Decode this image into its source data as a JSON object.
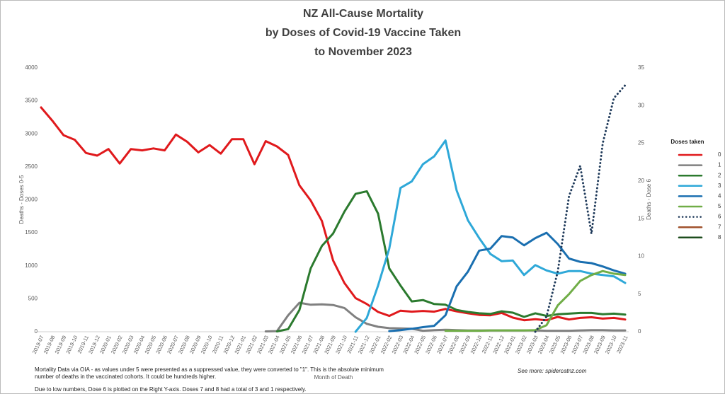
{
  "chart_data": {
    "type": "line",
    "title": [
      "NZ All-Cause Mortality",
      "by Doses of Covid-19 Vaccine Taken",
      "to November 2023"
    ],
    "x_label": "Month of Death",
    "y_label": "Deaths - Doses 0-5",
    "y2_label": "Deaths - Dose 6",
    "legend_title": "Doses taken",
    "legend": "right",
    "notes": [
      "Mortality Data via OIA - as values under 5 were presented as a suppressed value, they were converted to \"1\".  This is the absolute minimum number of deaths in the vaccinated cohorts.  It could be hundreds higher.",
      "Due to low numbers, Dose 6 is plotted on the Right Y-axis.  Doses 7 and 8 had a total of 3 and 1 respectively."
    ],
    "source": "See more: spidercatnz.com",
    "categories": [
      "2019-07",
      "2019-08",
      "2019-09",
      "2019-10",
      "2019-11",
      "2019-12",
      "2020-01",
      "2020-02",
      "2020-03",
      "2020-04",
      "2020-05",
      "2020-06",
      "2020-07",
      "2020-08",
      "2020-09",
      "2020-10",
      "2020-11",
      "2020-12",
      "2021-01",
      "2021-02",
      "2021-03",
      "2021-04",
      "2021-05",
      "2021-06",
      "2021-07",
      "2021-08",
      "2021-09",
      "2021-10",
      "2021-11",
      "2021-12",
      "2022-01",
      "2022-02",
      "2022-03",
      "2022-04",
      "2022-05",
      "2022-06",
      "2022-07",
      "2022-08",
      "2022-09",
      "2022-10",
      "2022-11",
      "2022-12",
      "2023-01",
      "2023-02",
      "2023-03",
      "2023-04",
      "2023-05",
      "2023-06",
      "2023-07",
      "2023-08",
      "2023-09",
      "2023-10",
      "2023-11"
    ],
    "ylim": [
      0,
      4000
    ],
    "yticks": [
      0,
      500,
      1000,
      1500,
      2000,
      2500,
      3000,
      3500,
      4000
    ],
    "y2lim": [
      0,
      35
    ],
    "y2ticks": [
      0,
      5,
      10,
      15,
      20,
      25,
      30,
      35
    ],
    "series": [
      {
        "name": "0",
        "color": "#e0191c",
        "values": [
          3400,
          3200,
          2980,
          2910,
          2710,
          2670,
          2770,
          2550,
          2770,
          2750,
          2780,
          2750,
          2990,
          2880,
          2720,
          2830,
          2700,
          2920,
          2920,
          2540,
          2890,
          2810,
          2680,
          2220,
          1990,
          1680,
          1080,
          740,
          510,
          420,
          300,
          240,
          320,
          305,
          315,
          305,
          345,
          310,
          280,
          255,
          250,
          285,
          215,
          175,
          190,
          175,
          225,
          185,
          210,
          220,
          200,
          210,
          185
        ]
      },
      {
        "name": "1",
        "color": "#808080",
        "values": [
          null,
          null,
          null,
          null,
          null,
          null,
          null,
          null,
          null,
          null,
          null,
          null,
          null,
          null,
          null,
          null,
          null,
          null,
          null,
          null,
          5,
          10,
          250,
          440,
          410,
          415,
          405,
          360,
          220,
          120,
          75,
          55,
          50,
          45,
          15,
          25,
          30,
          25,
          20,
          20,
          20,
          20,
          20,
          20,
          20,
          15,
          15,
          15,
          20,
          25,
          25,
          20,
          20
        ]
      },
      {
        "name": "2",
        "color": "#2b7a2e",
        "values": [
          null,
          null,
          null,
          null,
          null,
          null,
          null,
          null,
          null,
          null,
          null,
          null,
          null,
          null,
          null,
          null,
          null,
          null,
          null,
          null,
          null,
          5,
          40,
          330,
          960,
          1300,
          1490,
          1820,
          2090,
          2130,
          1790,
          960,
          700,
          460,
          480,
          420,
          410,
          330,
          300,
          280,
          270,
          310,
          290,
          225,
          280,
          240,
          265,
          275,
          285,
          285,
          265,
          275,
          260
        ]
      },
      {
        "name": "3",
        "color": "#2ea8d8",
        "values": [
          null,
          null,
          null,
          null,
          null,
          null,
          null,
          null,
          null,
          null,
          null,
          null,
          null,
          null,
          null,
          null,
          null,
          null,
          null,
          null,
          null,
          null,
          null,
          null,
          null,
          null,
          null,
          null,
          0,
          210,
          700,
          1260,
          2180,
          2280,
          2540,
          2660,
          2900,
          2140,
          1690,
          1420,
          1180,
          1070,
          1080,
          860,
          1010,
          930,
          880,
          920,
          920,
          880,
          860,
          840,
          740
        ]
      },
      {
        "name": "4",
        "color": "#1a6fb0",
        "values": [
          null,
          null,
          null,
          null,
          null,
          null,
          null,
          null,
          null,
          null,
          null,
          null,
          null,
          null,
          null,
          null,
          null,
          null,
          null,
          null,
          null,
          null,
          null,
          null,
          null,
          null,
          null,
          null,
          null,
          null,
          null,
          10,
          25,
          45,
          70,
          90,
          250,
          690,
          910,
          1230,
          1260,
          1450,
          1430,
          1310,
          1420,
          1500,
          1330,
          1110,
          1060,
          1040,
          990,
          930,
          880
        ]
      },
      {
        "name": "5",
        "color": "#70ad47",
        "values": [
          null,
          null,
          null,
          null,
          null,
          null,
          null,
          null,
          null,
          null,
          null,
          null,
          null,
          null,
          null,
          null,
          null,
          null,
          null,
          null,
          null,
          null,
          null,
          null,
          null,
          null,
          null,
          null,
          null,
          null,
          null,
          null,
          null,
          null,
          null,
          null,
          15,
          15,
          15,
          15,
          20,
          20,
          20,
          20,
          25,
          100,
          400,
          570,
          770,
          860,
          920,
          880,
          860
        ]
      },
      {
        "name": "6",
        "color": "#1f3a5a",
        "axis": "y2",
        "dashed": true,
        "values": [
          null,
          null,
          null,
          null,
          null,
          null,
          null,
          null,
          null,
          null,
          null,
          null,
          null,
          null,
          null,
          null,
          null,
          null,
          null,
          null,
          null,
          null,
          null,
          null,
          null,
          null,
          null,
          null,
          null,
          null,
          null,
          null,
          null,
          null,
          null,
          null,
          null,
          null,
          null,
          null,
          null,
          null,
          null,
          null,
          0,
          2,
          8,
          18,
          22,
          13,
          25,
          31,
          32.7
        ]
      },
      {
        "name": "7",
        "color": "#a0522d",
        "values": [
          null,
          null,
          null,
          null,
          null,
          null,
          null,
          null,
          null,
          null,
          null,
          null,
          null,
          null,
          null,
          null,
          null,
          null,
          null,
          null,
          null,
          null,
          null,
          null,
          null,
          null,
          null,
          null,
          null,
          null,
          null,
          null,
          null,
          null,
          null,
          null,
          null,
          null,
          null,
          null,
          null,
          null,
          null,
          null,
          null,
          null,
          null,
          null,
          null,
          null,
          null,
          null,
          null
        ]
      },
      {
        "name": "8",
        "color": "#1e4d1e",
        "values": [
          null,
          null,
          null,
          null,
          null,
          null,
          null,
          null,
          null,
          null,
          null,
          null,
          null,
          null,
          null,
          null,
          null,
          null,
          null,
          null,
          null,
          null,
          null,
          null,
          null,
          null,
          null,
          null,
          null,
          null,
          null,
          null,
          null,
          null,
          null,
          null,
          null,
          null,
          null,
          null,
          null,
          null,
          null,
          null,
          null,
          null,
          null,
          null,
          null,
          null,
          null,
          null,
          null
        ]
      }
    ]
  }
}
